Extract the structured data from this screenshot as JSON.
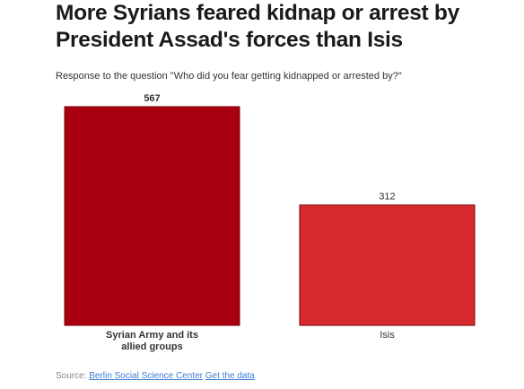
{
  "header": {
    "title": "More Syrians feared kidnap or arrest by President Assad's forces than Isis",
    "subtitle": "Response to the question \"Who did you fear getting kidnapped or arrested by?\""
  },
  "chart_data": {
    "type": "bar",
    "title": "More Syrians feared kidnap or arrest by President Assad's forces than Isis",
    "subtitle": "Response to the question \"Who did you fear getting kidnapped or arrested by?\"",
    "categories": [
      "Syrian Army and its allied groups",
      "Isis"
    ],
    "values": [
      567,
      312
    ],
    "data_labels": [
      "567",
      "312"
    ],
    "bar_colors": [
      "#a8000f",
      "#d62a2e"
    ],
    "bar_border_color": "#7a0009",
    "xlabel": "",
    "ylabel": "",
    "ylim": [
      0,
      567
    ],
    "grid": false,
    "legend": "none"
  },
  "footer": {
    "source_prefix": "Source:",
    "source_link": "Berlin Social Science Center",
    "data_link": "Get the data"
  }
}
